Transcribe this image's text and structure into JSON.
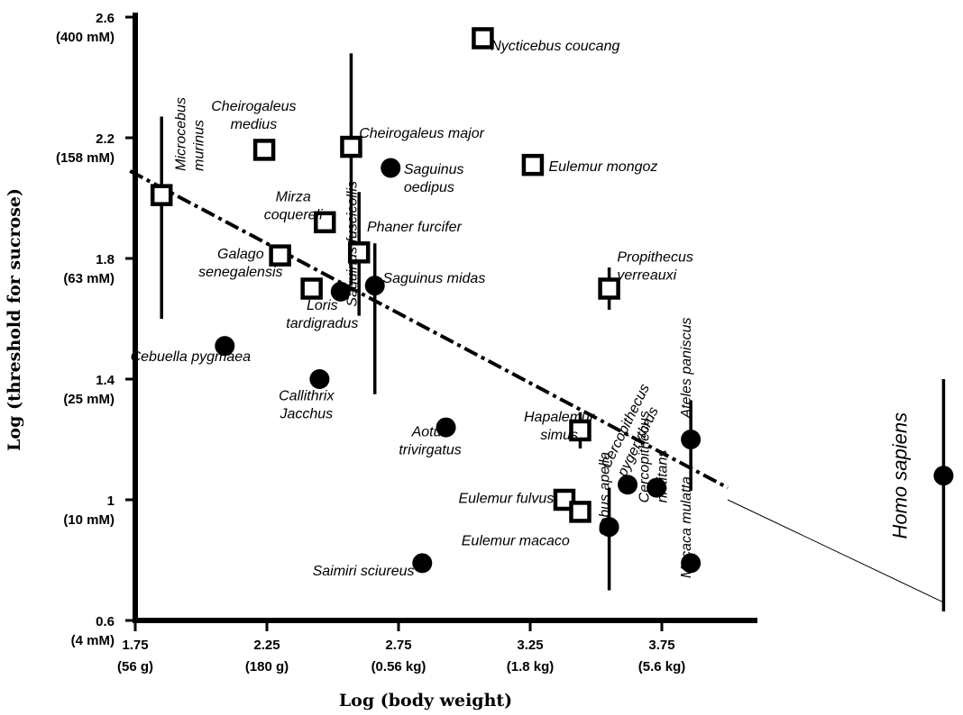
{
  "chart_data": {
    "type": "scatter",
    "xlabel": "Log (body weight)",
    "ylabel": "Log (threshold for sucrose)",
    "xlim": [
      1.7,
      4.82
    ],
    "ylim": [
      0.6,
      2.6
    ],
    "x_ticks": [
      {
        "value": 1.75,
        "label": "1.75",
        "sub": "(56 g)"
      },
      {
        "value": 2.25,
        "label": "2.25",
        "sub": "(180 g)"
      },
      {
        "value": 2.75,
        "label": "2.75",
        "sub": "(0.56 kg)"
      },
      {
        "value": 3.25,
        "label": "3.25",
        "sub": "(1.8 kg)"
      },
      {
        "value": 3.75,
        "label": "3.75",
        "sub": "(5.6 kg)"
      }
    ],
    "y_ticks": [
      {
        "value": 2.6,
        "label": "2.6",
        "sub": "(400 mM)"
      },
      {
        "value": 2.2,
        "label": "2.2",
        "sub": "(158 mM)"
      },
      {
        "value": 1.8,
        "label": "1.8",
        "sub": "(63 mM)"
      },
      {
        "value": 1.4,
        "label": "1.4",
        "sub": "(25 mM)"
      },
      {
        "value": 1.0,
        "label": "1",
        "sub": "(10 mM)"
      },
      {
        "value": 0.6,
        "label": "0.6",
        "sub": "(4 mM)"
      }
    ],
    "series": [
      {
        "marker": "open-square",
        "points": [
          {
            "x": 1.85,
            "y": 2.01,
            "err": [
              1.6,
              2.27
            ],
            "label": [
              "Microcebus",
              "murinus"
            ],
            "label_anchor": "start",
            "label_rotate": -90,
            "lx": 1.94,
            "ly": 2.09
          },
          {
            "x": 2.24,
            "y": 2.16,
            "label": [
              "Cheirogaleus",
              "medius"
            ],
            "label_anchor": "middle",
            "lx": 2.2,
            "ly": 2.29
          },
          {
            "x": 2.57,
            "y": 2.17,
            "err": [
              1.71,
              2.48
            ],
            "label": [
              "Cheirogaleus major"
            ],
            "label_anchor": "start",
            "lx": 2.6,
            "ly": 2.2
          },
          {
            "x": 3.07,
            "y": 2.53,
            "label": [
              "Nycticebus coucang"
            ],
            "label_anchor": "start",
            "lx": 3.1,
            "ly": 2.49
          },
          {
            "x": 3.26,
            "y": 2.11,
            "label": [
              "Eulemur mongoz"
            ],
            "label_anchor": "start",
            "lx": 3.32,
            "ly": 2.09
          },
          {
            "x": 2.47,
            "y": 1.92,
            "err": [
              1.89,
              1.95
            ],
            "label": [
              "Mirza",
              "coquereli"
            ],
            "label_anchor": "middle",
            "lx": 2.35,
            "ly": 1.99
          },
          {
            "x": 2.3,
            "y": 1.81,
            "label": [
              "Galago",
              "senegalensis"
            ],
            "label_anchor": "middle",
            "lx": 2.15,
            "ly": 1.8
          },
          {
            "x": 2.6,
            "y": 1.82,
            "err": [
              1.61,
              2.02
            ],
            "label": [
              "Phaner furcifer"
            ],
            "label_anchor": "start",
            "lx": 2.63,
            "ly": 1.89
          },
          {
            "x": 2.42,
            "y": 1.7,
            "label": [
              "Loris",
              "tardigradus"
            ],
            "label_anchor": "middle",
            "lx": 2.46,
            "ly": 1.63
          },
          {
            "x": 3.55,
            "y": 1.7,
            "err": [
              1.63,
              1.77
            ],
            "label": [
              "Propithecus",
              "verreauxi"
            ],
            "label_anchor": "start",
            "lx": 3.58,
            "ly": 1.79
          },
          {
            "x": 3.44,
            "y": 1.23,
            "err": [
              1.17,
              1.29
            ],
            "label": [
              "Hapalemur",
              "simus"
            ],
            "label_anchor": "middle",
            "lx": 3.36,
            "ly": 1.26
          },
          {
            "x": 3.38,
            "y": 1.0,
            "label": [
              "Eulemur fulvus"
            ],
            "label_anchor": "end",
            "lx": 3.34,
            "ly": 0.99
          },
          {
            "x": 3.44,
            "y": 0.96,
            "label": [
              "Eulemur macaco"
            ],
            "label_anchor": "end",
            "lx": 3.4,
            "ly": 0.85
          }
        ]
      },
      {
        "marker": "filled-circle",
        "points": [
          {
            "x": 2.72,
            "y": 2.1,
            "label": [
              "Saguinus",
              "oedipus"
            ],
            "label_anchor": "start",
            "lx": 2.77,
            "ly": 2.08
          },
          {
            "x": 2.53,
            "y": 1.69,
            "label": [
              "Saguinus fuscicollis"
            ],
            "label_anchor": "start",
            "label_rotate": -90,
            "lx": 2.59,
            "ly": 1.64
          },
          {
            "x": 2.66,
            "y": 1.71,
            "err": [
              1.35,
              1.85
            ],
            "label": [
              "Saguinus midas"
            ],
            "label_anchor": "start",
            "lx": 2.69,
            "ly": 1.72
          },
          {
            "x": 2.09,
            "y": 1.51,
            "label": [
              "Cebuella pygmaea"
            ],
            "label_anchor": "middle",
            "lx": 1.96,
            "ly": 1.46
          },
          {
            "x": 2.45,
            "y": 1.4,
            "label": [
              "Callithrix",
              "Jacchus"
            ],
            "label_anchor": "middle",
            "lx": 2.4,
            "ly": 1.33
          },
          {
            "x": 2.93,
            "y": 1.24,
            "label": [
              "Aotus",
              "trivirgatus"
            ],
            "label_anchor": "middle",
            "lx": 2.87,
            "ly": 1.21
          },
          {
            "x": 2.84,
            "y": 0.79,
            "label": [
              "Saimiri sciureus"
            ],
            "label_anchor": "end",
            "lx": 2.81,
            "ly": 0.75
          },
          {
            "x": 3.55,
            "y": 0.91,
            "err": [
              0.7,
              1.04
            ],
            "label": [
              "Cebus apella"
            ],
            "label_anchor": "start",
            "label_rotate": -90,
            "lx": 3.55,
            "ly": 0.88
          },
          {
            "x": 3.62,
            "y": 1.05,
            "label": [
              "Cercopithecus",
              "pygerythrus"
            ],
            "label_anchor": "start",
            "label_rotate": -64,
            "lx": 3.55,
            "ly": 1.1
          },
          {
            "x": 3.73,
            "y": 1.04,
            "label": [
              "Cercopithecus",
              "nictitans"
            ],
            "label_anchor": "start",
            "label_rotate": -90,
            "lx": 3.7,
            "ly": 0.99
          },
          {
            "x": 3.86,
            "y": 1.2,
            "err": [
              1.03,
              1.33
            ],
            "label": [
              "Ateles paniscus"
            ],
            "label_anchor": "start",
            "label_rotate": -90,
            "lx": 3.86,
            "ly": 1.27
          },
          {
            "x": 3.86,
            "y": 0.79,
            "label": [
              "Macaca mulatta"
            ],
            "label_anchor": "start",
            "label_rotate": -90,
            "lx": 3.86,
            "ly": 0.74
          },
          {
            "x": 4.82,
            "y": 1.08,
            "err": [
              0.63,
              1.4
            ],
            "label": [
              "Homo sapiens"
            ],
            "label_anchor": "middle",
            "label_rotate": -90,
            "lx": 4.68,
            "ly": 1.08
          }
        ]
      }
    ],
    "fit_line": {
      "x": [
        1.73,
        4.0
      ],
      "y": [
        2.09,
        1.04
      ]
    },
    "extension_line": {
      "x": [
        4.0,
        4.82
      ],
      "y": [
        1.0,
        0.66
      ]
    }
  }
}
